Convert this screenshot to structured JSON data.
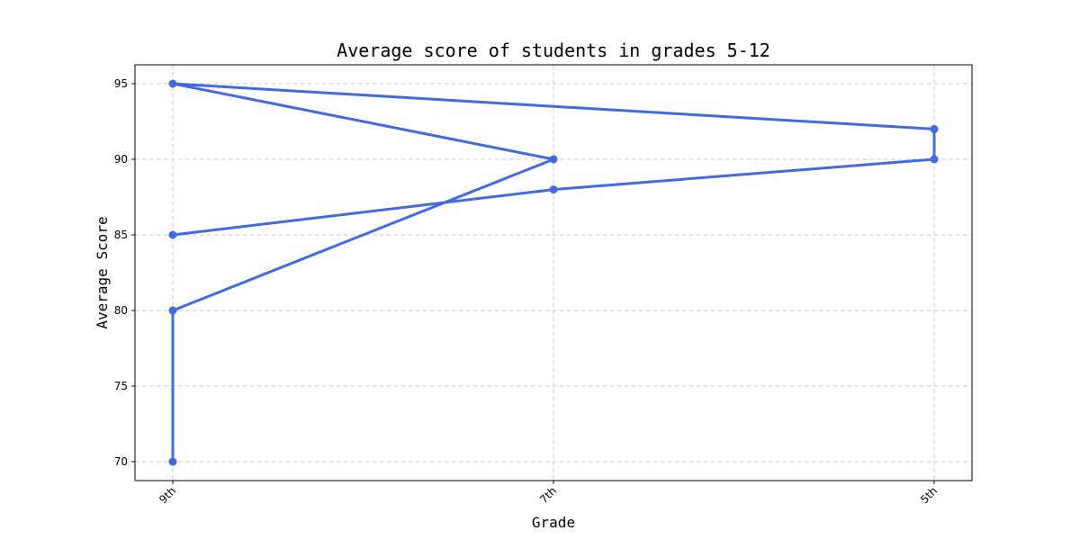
{
  "chart_data": {
    "type": "line",
    "title": "Average score of students in grades 5-12",
    "xlabel": "Grade",
    "ylabel": "Average Score",
    "categories": [
      "9th",
      "7th",
      "5th"
    ],
    "yticks": [
      70,
      75,
      80,
      85,
      90,
      95
    ],
    "ylim": [
      68.75,
      96.25
    ],
    "grid": true,
    "color": "#4169E1",
    "series": [
      {
        "points": [
          {
            "x": "9th",
            "y": 70
          },
          {
            "x": "9th",
            "y": 80
          },
          {
            "x": "7th",
            "y": 90
          },
          {
            "x": "9th",
            "y": 95
          },
          {
            "x": "5th",
            "y": 92
          },
          {
            "x": "5th",
            "y": 90
          },
          {
            "x": "7th",
            "y": 88
          },
          {
            "x": "9th",
            "y": 85
          }
        ]
      }
    ]
  }
}
